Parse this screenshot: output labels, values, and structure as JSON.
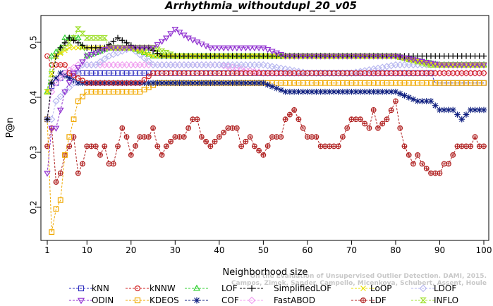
{
  "watermark": {
    "line1": "Campos, Zimek, Sander, Campello, Micenkova, Schubert, Assent, Houle",
    "line2": "On the Evaluation of Unsupervised Outlier Detection. DAMI, 2015."
  },
  "chart_data": {
    "type": "line",
    "title": "Arrhythmia_withoutdupl_20_v05",
    "xlabel": "Neighborhood size",
    "ylabel": "P@n",
    "xlim": [
      1,
      100
    ],
    "ylim": [
      0.15,
      0.55
    ],
    "xticks": [
      1,
      10,
      20,
      30,
      40,
      50,
      60,
      70,
      80,
      90,
      100
    ],
    "yticks": [
      0.2,
      0.3,
      0.4,
      0.5
    ],
    "grid": false,
    "legend_position": "bottom",
    "series": [
      {
        "name": "kNN",
        "color": "#3030c0",
        "marker": "square",
        "keyframes": [
          [
            1,
            0.36
          ],
          [
            2,
            0.42
          ],
          [
            3,
            0.426
          ],
          [
            5,
            0.444
          ],
          [
            10,
            0.444
          ],
          [
            20,
            0.444
          ],
          [
            40,
            0.444
          ],
          [
            60,
            0.444
          ],
          [
            80,
            0.444
          ],
          [
            88,
            0.444
          ],
          [
            89,
            0.426
          ],
          [
            100,
            0.426
          ]
        ]
      },
      {
        "name": "kNNW",
        "color": "#d02020",
        "marker": "circle",
        "keyframes": [
          [
            1,
            0.475
          ],
          [
            2,
            0.459
          ],
          [
            3,
            0.459
          ],
          [
            5,
            0.459
          ],
          [
            6,
            0.444
          ],
          [
            10,
            0.426
          ],
          [
            13,
            0.426
          ],
          [
            15,
            0.426
          ],
          [
            20,
            0.426
          ],
          [
            22,
            0.426
          ],
          [
            25,
            0.444
          ],
          [
            35,
            0.444
          ],
          [
            50,
            0.444
          ],
          [
            60,
            0.444
          ],
          [
            70,
            0.444
          ],
          [
            80,
            0.444
          ],
          [
            90,
            0.444
          ],
          [
            100,
            0.444
          ]
        ]
      },
      {
        "name": "LOF",
        "color": "#30d030",
        "marker": "triangle",
        "keyframes": [
          [
            1,
            0.41
          ],
          [
            2,
            0.475
          ],
          [
            4,
            0.49
          ],
          [
            5,
            0.508
          ],
          [
            8,
            0.508
          ],
          [
            10,
            0.475
          ],
          [
            15,
            0.49
          ],
          [
            20,
            0.49
          ],
          [
            25,
            0.475
          ],
          [
            30,
            0.475
          ],
          [
            40,
            0.475
          ],
          [
            60,
            0.475
          ],
          [
            80,
            0.475
          ],
          [
            90,
            0.459
          ],
          [
            100,
            0.459
          ]
        ]
      },
      {
        "name": "SimplifiedLOF",
        "color": "#000000",
        "marker": "plus",
        "keyframes": [
          [
            1,
            0.36
          ],
          [
            2,
            0.426
          ],
          [
            3,
            0.475
          ],
          [
            4,
            0.49
          ],
          [
            6,
            0.508
          ],
          [
            10,
            0.49
          ],
          [
            14,
            0.49
          ],
          [
            17,
            0.508
          ],
          [
            21,
            0.49
          ],
          [
            24,
            0.49
          ],
          [
            27,
            0.475
          ],
          [
            35,
            0.475
          ],
          [
            45,
            0.475
          ],
          [
            55,
            0.475
          ],
          [
            60,
            0.475
          ],
          [
            70,
            0.475
          ],
          [
            80,
            0.475
          ],
          [
            90,
            0.475
          ],
          [
            100,
            0.475
          ]
        ]
      },
      {
        "name": "LoOP",
        "color": "#e8e000",
        "marker": "x",
        "keyframes": [
          [
            1,
            0.41
          ],
          [
            3,
            0.475
          ],
          [
            6,
            0.49
          ],
          [
            10,
            0.49
          ],
          [
            15,
            0.49
          ],
          [
            20,
            0.49
          ],
          [
            25,
            0.475
          ],
          [
            30,
            0.475
          ],
          [
            40,
            0.475
          ],
          [
            60,
            0.475
          ],
          [
            80,
            0.475
          ],
          [
            90,
            0.459
          ],
          [
            100,
            0.459
          ]
        ]
      },
      {
        "name": "LDOF",
        "color": "#b8b8f0",
        "marker": "diamond",
        "keyframes": [
          [
            1,
            0.36
          ],
          [
            2,
            0.36
          ],
          [
            3,
            0.393
          ],
          [
            5,
            0.41
          ],
          [
            7,
            0.426
          ],
          [
            9,
            0.459
          ],
          [
            12,
            0.459
          ],
          [
            15,
            0.475
          ],
          [
            20,
            0.49
          ],
          [
            25,
            0.459
          ],
          [
            30,
            0.459
          ],
          [
            40,
            0.459
          ],
          [
            50,
            0.459
          ],
          [
            60,
            0.444
          ],
          [
            70,
            0.444
          ],
          [
            80,
            0.459
          ],
          [
            90,
            0.459
          ],
          [
            100,
            0.459
          ]
        ]
      },
      {
        "name": "ODIN",
        "color": "#9030d0",
        "marker": "triangle-down",
        "keyframes": [
          [
            1,
            0.262
          ],
          [
            2,
            0.344
          ],
          [
            3,
            0.344
          ],
          [
            5,
            0.41
          ],
          [
            7,
            0.444
          ],
          [
            10,
            0.475
          ],
          [
            15,
            0.49
          ],
          [
            20,
            0.49
          ],
          [
            25,
            0.49
          ],
          [
            28,
            0.508
          ],
          [
            30,
            0.524
          ],
          [
            33,
            0.508
          ],
          [
            38,
            0.49
          ],
          [
            42,
            0.49
          ],
          [
            47,
            0.49
          ],
          [
            50,
            0.49
          ],
          [
            55,
            0.475
          ],
          [
            60,
            0.475
          ],
          [
            70,
            0.475
          ],
          [
            80,
            0.475
          ],
          [
            90,
            0.459
          ],
          [
            100,
            0.459
          ]
        ]
      },
      {
        "name": "KDEOS",
        "color": "#f0a800",
        "marker": "square",
        "keyframes": [
          [
            1,
            0.36
          ],
          [
            2,
            0.155
          ],
          [
            3,
            0.197
          ],
          [
            4,
            0.213
          ],
          [
            5,
            0.295
          ],
          [
            6,
            0.328
          ],
          [
            7,
            0.36
          ],
          [
            8,
            0.393
          ],
          [
            10,
            0.41
          ],
          [
            14,
            0.41
          ],
          [
            18,
            0.41
          ],
          [
            22,
            0.41
          ],
          [
            26,
            0.426
          ],
          [
            30,
            0.426
          ],
          [
            35,
            0.426
          ],
          [
            40,
            0.426
          ],
          [
            45,
            0.426
          ],
          [
            50,
            0.426
          ],
          [
            55,
            0.426
          ],
          [
            60,
            0.426
          ],
          [
            70,
            0.426
          ],
          [
            80,
            0.426
          ],
          [
            85,
            0.426
          ],
          [
            90,
            0.426
          ],
          [
            100,
            0.426
          ]
        ]
      },
      {
        "name": "COF",
        "color": "#102080",
        "marker": "star",
        "keyframes": [
          [
            1,
            0.36
          ],
          [
            2,
            0.426
          ],
          [
            4,
            0.444
          ],
          [
            8,
            0.426
          ],
          [
            10,
            0.426
          ],
          [
            20,
            0.426
          ],
          [
            30,
            0.426
          ],
          [
            40,
            0.426
          ],
          [
            50,
            0.426
          ],
          [
            55,
            0.41
          ],
          [
            60,
            0.41
          ],
          [
            65,
            0.41
          ],
          [
            70,
            0.41
          ],
          [
            75,
            0.41
          ],
          [
            80,
            0.41
          ],
          [
            85,
            0.393
          ],
          [
            88,
            0.393
          ],
          [
            90,
            0.377
          ],
          [
            93,
            0.377
          ],
          [
            95,
            0.36
          ],
          [
            97,
            0.377
          ],
          [
            100,
            0.377
          ]
        ]
      },
      {
        "name": "FastABOD",
        "color": "#f0a0f0",
        "marker": "diamond",
        "keyframes": [
          [
            1,
            0.36
          ],
          [
            2,
            0.41
          ],
          [
            3,
            0.426
          ],
          [
            5,
            0.444
          ],
          [
            8,
            0.459
          ],
          [
            10,
            0.459
          ],
          [
            20,
            0.459
          ],
          [
            30,
            0.459
          ],
          [
            40,
            0.459
          ],
          [
            50,
            0.444
          ],
          [
            60,
            0.444
          ],
          [
            70,
            0.444
          ],
          [
            80,
            0.444
          ],
          [
            90,
            0.444
          ],
          [
            100,
            0.444
          ]
        ]
      },
      {
        "name": "LDF",
        "color": "#b02020",
        "marker": "circle-cross",
        "keyframes": [
          [
            1,
            0.311
          ],
          [
            2,
            0.344
          ],
          [
            3,
            0.246
          ],
          [
            4,
            0.262
          ],
          [
            5,
            0.295
          ],
          [
            6,
            0.311
          ],
          [
            7,
            0.328
          ],
          [
            8,
            0.262
          ],
          [
            9,
            0.279
          ],
          [
            10,
            0.311
          ],
          [
            12,
            0.311
          ],
          [
            13,
            0.295
          ],
          [
            14,
            0.311
          ],
          [
            15,
            0.279
          ],
          [
            16,
            0.279
          ],
          [
            17,
            0.311
          ],
          [
            18,
            0.344
          ],
          [
            19,
            0.328
          ],
          [
            20,
            0.295
          ],
          [
            22,
            0.328
          ],
          [
            24,
            0.328
          ],
          [
            25,
            0.344
          ],
          [
            26,
            0.311
          ],
          [
            27,
            0.295
          ],
          [
            28,
            0.311
          ],
          [
            30,
            0.328
          ],
          [
            32,
            0.328
          ],
          [
            34,
            0.36
          ],
          [
            35,
            0.36
          ],
          [
            36,
            0.328
          ],
          [
            38,
            0.311
          ],
          [
            40,
            0.328
          ],
          [
            42,
            0.344
          ],
          [
            44,
            0.344
          ],
          [
            45,
            0.311
          ],
          [
            47,
            0.328
          ],
          [
            48,
            0.311
          ],
          [
            50,
            0.295
          ],
          [
            52,
            0.328
          ],
          [
            54,
            0.328
          ],
          [
            55,
            0.36
          ],
          [
            57,
            0.377
          ],
          [
            58,
            0.36
          ],
          [
            60,
            0.328
          ],
          [
            62,
            0.328
          ],
          [
            63,
            0.311
          ],
          [
            65,
            0.311
          ],
          [
            67,
            0.311
          ],
          [
            68,
            0.328
          ],
          [
            70,
            0.36
          ],
          [
            72,
            0.36
          ],
          [
            74,
            0.344
          ],
          [
            75,
            0.377
          ],
          [
            76,
            0.344
          ],
          [
            78,
            0.36
          ],
          [
            80,
            0.393
          ],
          [
            81,
            0.344
          ],
          [
            82,
            0.311
          ],
          [
            83,
            0.295
          ],
          [
            84,
            0.279
          ],
          [
            85,
            0.295
          ],
          [
            86,
            0.279
          ],
          [
            88,
            0.262
          ],
          [
            90,
            0.262
          ],
          [
            91,
            0.279
          ],
          [
            92,
            0.279
          ],
          [
            93,
            0.295
          ],
          [
            94,
            0.311
          ],
          [
            95,
            0.311
          ],
          [
            97,
            0.311
          ],
          [
            98,
            0.328
          ],
          [
            99,
            0.311
          ],
          [
            100,
            0.311
          ]
        ]
      },
      {
        "name": "INFLO",
        "color": "#a0e030",
        "marker": "hourglass",
        "keyframes": [
          [
            1,
            0.41
          ],
          [
            3,
            0.475
          ],
          [
            5,
            0.49
          ],
          [
            7,
            0.508
          ],
          [
            8,
            0.524
          ],
          [
            10,
            0.508
          ],
          [
            14,
            0.508
          ],
          [
            15,
            0.49
          ],
          [
            20,
            0.49
          ],
          [
            25,
            0.49
          ],
          [
            30,
            0.475
          ],
          [
            40,
            0.475
          ],
          [
            60,
            0.475
          ],
          [
            70,
            0.475
          ],
          [
            80,
            0.475
          ],
          [
            88,
            0.459
          ],
          [
            90,
            0.459
          ],
          [
            100,
            0.459
          ]
        ]
      }
    ]
  }
}
